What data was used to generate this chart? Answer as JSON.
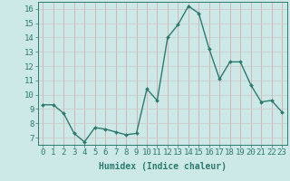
{
  "x": [
    0,
    1,
    2,
    3,
    4,
    5,
    6,
    7,
    8,
    9,
    10,
    11,
    12,
    13,
    14,
    15,
    16,
    17,
    18,
    19,
    20,
    21,
    22,
    23
  ],
  "y": [
    9.3,
    9.3,
    8.7,
    7.3,
    6.7,
    7.7,
    7.6,
    7.4,
    7.2,
    7.3,
    10.4,
    9.6,
    14.0,
    14.9,
    16.2,
    15.7,
    13.2,
    11.1,
    12.3,
    12.3,
    10.7,
    9.5,
    9.6,
    8.8
  ],
  "line_color": "#2d7a6e",
  "marker": "D",
  "marker_size": 2.0,
  "linewidth": 1.0,
  "bg_color": "#cce9e7",
  "grid_color": "#b8d8d6",
  "xlabel": "Humidex (Indice chaleur)",
  "xlabel_fontsize": 7,
  "tick_fontsize": 6.5,
  "xlim": [
    -0.5,
    23.5
  ],
  "ylim": [
    6.5,
    16.5
  ],
  "yticks": [
    7,
    8,
    9,
    10,
    11,
    12,
    13,
    14,
    15,
    16
  ],
  "xticks": [
    0,
    1,
    2,
    3,
    4,
    5,
    6,
    7,
    8,
    9,
    10,
    11,
    12,
    13,
    14,
    15,
    16,
    17,
    18,
    19,
    20,
    21,
    22,
    23
  ]
}
